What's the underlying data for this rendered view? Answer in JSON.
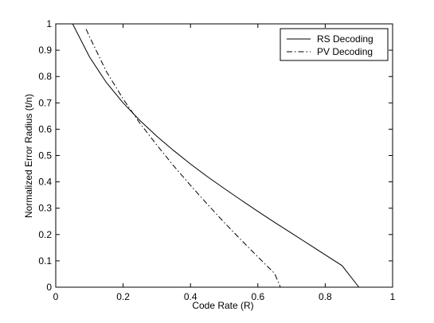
{
  "chart_data": {
    "type": "line",
    "title": "",
    "xlabel": "Code Rate (R)",
    "ylabel": "Normalized Error Radius (t/n)",
    "xlim": [
      0,
      1
    ],
    "ylim": [
      0,
      1
    ],
    "xticks": [
      0,
      0.2,
      0.4,
      0.6,
      0.8,
      1
    ],
    "xtick_labels": [
      "0",
      "0.2",
      "0.4",
      "0.6",
      "0.8",
      "1"
    ],
    "yticks": [
      0,
      0.1,
      0.2,
      0.3,
      0.4,
      0.5,
      0.6,
      0.7,
      0.8,
      0.9,
      1
    ],
    "ytick_labels": [
      "0",
      "0.1",
      "0.2",
      "0.3",
      "0.4",
      "0.5",
      "0.6",
      "0.7",
      "0.8",
      "0.9",
      "1"
    ],
    "grid": false,
    "legend_position": "top-right",
    "series": [
      {
        "name": "RS Decoding",
        "style": "solid",
        "color": "#000000",
        "x": [
          0.05,
          0.1,
          0.15,
          0.2,
          0.25,
          0.3,
          0.35,
          0.4,
          0.45,
          0.5,
          0.55,
          0.6,
          0.65,
          0.7,
          0.75,
          0.8,
          0.85,
          0.9
        ],
        "y": [
          1.0,
          0.875,
          0.778,
          0.7,
          0.633,
          0.573,
          0.519,
          0.468,
          0.42,
          0.375,
          0.331,
          0.288,
          0.246,
          0.205,
          0.164,
          0.123,
          0.082,
          0.0
        ]
      },
      {
        "name": "PV Decoding",
        "style": "dash-dot",
        "color": "#000000",
        "x": [
          0.09,
          0.1,
          0.15,
          0.2,
          0.25,
          0.3,
          0.35,
          0.4,
          0.45,
          0.5,
          0.55,
          0.6,
          0.65,
          0.667
        ],
        "y": [
          0.98,
          0.952,
          0.82,
          0.715,
          0.622,
          0.54,
          0.461,
          0.387,
          0.315,
          0.246,
          0.18,
          0.115,
          0.052,
          0.0
        ]
      }
    ]
  }
}
